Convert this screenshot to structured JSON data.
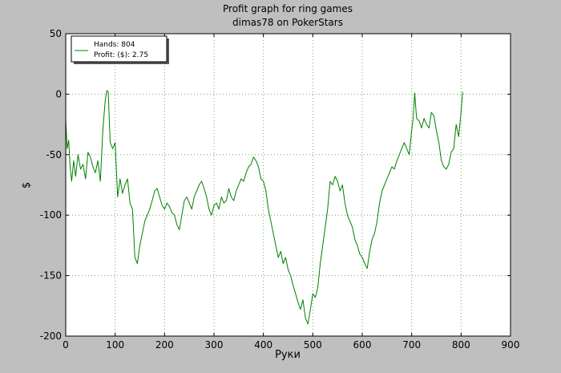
{
  "chart_data": {
    "type": "line",
    "title": "Profit graph for ring games",
    "subtitle": "dimas78 on PokerStars",
    "xlabel": "Руки",
    "ylabel": "$",
    "xlim": [
      0,
      900
    ],
    "ylim": [
      -200,
      50
    ],
    "xticks": [
      "0",
      "100",
      "200",
      "300",
      "400",
      "500",
      "600",
      "700",
      "800",
      "900"
    ],
    "yticks": [
      "50",
      "0",
      "-50",
      "-100",
      "-150",
      "-200"
    ],
    "grid": true,
    "legend": {
      "placement": "top-left",
      "lines": [
        "Hands: 804",
        "Profit: ($): 2.75"
      ]
    },
    "series": [
      {
        "color": "#008000",
        "points": [
          [
            0,
            -21
          ],
          [
            3,
            -45
          ],
          [
            6,
            -38
          ],
          [
            9,
            -60
          ],
          [
            12,
            -72
          ],
          [
            16,
            -55
          ],
          [
            20,
            -68
          ],
          [
            25,
            -50
          ],
          [
            30,
            -62
          ],
          [
            35,
            -58
          ],
          [
            40,
            -70
          ],
          [
            45,
            -48
          ],
          [
            50,
            -52
          ],
          [
            55,
            -60
          ],
          [
            60,
            -65
          ],
          [
            65,
            -55
          ],
          [
            70,
            -72
          ],
          [
            75,
            -30
          ],
          [
            80,
            -5
          ],
          [
            83,
            3
          ],
          [
            86,
            2
          ],
          [
            90,
            -40
          ],
          [
            95,
            -45
          ],
          [
            100,
            -40
          ],
          [
            105,
            -85
          ],
          [
            110,
            -70
          ],
          [
            115,
            -82
          ],
          [
            120,
            -75
          ],
          [
            125,
            -70
          ],
          [
            130,
            -90
          ],
          [
            135,
            -95
          ],
          [
            140,
            -135
          ],
          [
            145,
            -140
          ],
          [
            150,
            -125
          ],
          [
            155,
            -115
          ],
          [
            160,
            -105
          ],
          [
            165,
            -100
          ],
          [
            170,
            -95
          ],
          [
            175,
            -88
          ],
          [
            180,
            -80
          ],
          [
            185,
            -78
          ],
          [
            190,
            -85
          ],
          [
            195,
            -92
          ],
          [
            200,
            -95
          ],
          [
            205,
            -90
          ],
          [
            210,
            -93
          ],
          [
            215,
            -98
          ],
          [
            220,
            -100
          ],
          [
            225,
            -108
          ],
          [
            230,
            -112
          ],
          [
            235,
            -100
          ],
          [
            240,
            -88
          ],
          [
            245,
            -85
          ],
          [
            250,
            -90
          ],
          [
            255,
            -95
          ],
          [
            260,
            -85
          ],
          [
            265,
            -80
          ],
          [
            270,
            -75
          ],
          [
            275,
            -72
          ],
          [
            280,
            -78
          ],
          [
            285,
            -85
          ],
          [
            290,
            -95
          ],
          [
            295,
            -100
          ],
          [
            300,
            -92
          ],
          [
            305,
            -90
          ],
          [
            310,
            -95
          ],
          [
            315,
            -85
          ],
          [
            320,
            -90
          ],
          [
            325,
            -88
          ],
          [
            330,
            -78
          ],
          [
            335,
            -85
          ],
          [
            340,
            -88
          ],
          [
            345,
            -80
          ],
          [
            350,
            -75
          ],
          [
            355,
            -70
          ],
          [
            360,
            -72
          ],
          [
            365,
            -65
          ],
          [
            370,
            -60
          ],
          [
            375,
            -58
          ],
          [
            380,
            -52
          ],
          [
            385,
            -55
          ],
          [
            390,
            -60
          ],
          [
            395,
            -70
          ],
          [
            400,
            -72
          ],
          [
            405,
            -80
          ],
          [
            410,
            -95
          ],
          [
            415,
            -105
          ],
          [
            420,
            -115
          ],
          [
            425,
            -125
          ],
          [
            430,
            -135
          ],
          [
            435,
            -130
          ],
          [
            440,
            -140
          ],
          [
            445,
            -135
          ],
          [
            450,
            -145
          ],
          [
            455,
            -150
          ],
          [
            460,
            -158
          ],
          [
            465,
            -165
          ],
          [
            470,
            -172
          ],
          [
            475,
            -178
          ],
          [
            480,
            -170
          ],
          [
            485,
            -185
          ],
          [
            490,
            -190
          ],
          [
            495,
            -178
          ],
          [
            500,
            -165
          ],
          [
            505,
            -168
          ],
          [
            510,
            -160
          ],
          [
            515,
            -140
          ],
          [
            520,
            -125
          ],
          [
            525,
            -110
          ],
          [
            530,
            -95
          ],
          [
            535,
            -72
          ],
          [
            540,
            -75
          ],
          [
            545,
            -68
          ],
          [
            550,
            -72
          ],
          [
            555,
            -80
          ],
          [
            560,
            -75
          ],
          [
            565,
            -90
          ],
          [
            570,
            -100
          ],
          [
            575,
            -105
          ],
          [
            580,
            -110
          ],
          [
            585,
            -120
          ],
          [
            590,
            -125
          ],
          [
            595,
            -132
          ],
          [
            600,
            -135
          ],
          [
            605,
            -140
          ],
          [
            610,
            -144
          ],
          [
            615,
            -130
          ],
          [
            620,
            -120
          ],
          [
            625,
            -115
          ],
          [
            630,
            -105
          ],
          [
            635,
            -90
          ],
          [
            640,
            -80
          ],
          [
            645,
            -75
          ],
          [
            650,
            -70
          ],
          [
            655,
            -65
          ],
          [
            660,
            -60
          ],
          [
            665,
            -62
          ],
          [
            670,
            -55
          ],
          [
            675,
            -50
          ],
          [
            680,
            -45
          ],
          [
            685,
            -40
          ],
          [
            690,
            -45
          ],
          [
            695,
            -50
          ],
          [
            700,
            -30
          ],
          [
            703,
            -20
          ],
          [
            706,
            1
          ],
          [
            710,
            -20
          ],
          [
            715,
            -22
          ],
          [
            720,
            -28
          ],
          [
            725,
            -20
          ],
          [
            730,
            -25
          ],
          [
            735,
            -28
          ],
          [
            740,
            -15
          ],
          [
            745,
            -18
          ],
          [
            750,
            -30
          ],
          [
            755,
            -40
          ],
          [
            760,
            -55
          ],
          [
            765,
            -60
          ],
          [
            770,
            -62
          ],
          [
            775,
            -58
          ],
          [
            780,
            -48
          ],
          [
            785,
            -45
          ],
          [
            790,
            -25
          ],
          [
            795,
            -35
          ],
          [
            800,
            -15
          ],
          [
            803,
            2
          ]
        ]
      }
    ]
  }
}
